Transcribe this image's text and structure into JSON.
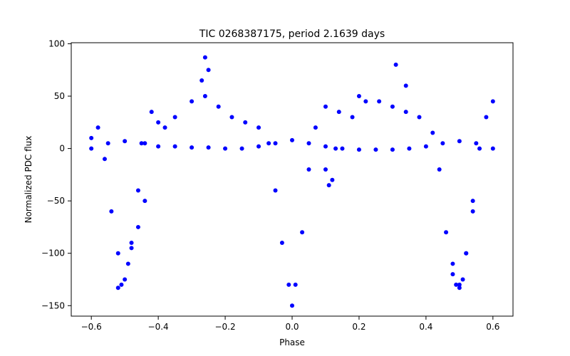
{
  "chart_data": {
    "type": "scatter",
    "title": "TIC 0268387175, period 2.1639 days",
    "xlabel": "Phase",
    "ylabel": "Normalized PDC flux",
    "xlim": [
      -0.66,
      0.66
    ],
    "ylim": [
      -160,
      101
    ],
    "xticks": [
      -0.6,
      -0.4,
      -0.2,
      0.0,
      0.2,
      0.4,
      0.6
    ],
    "xtick_labels": [
      "−0.6",
      "−0.4",
      "−0.2",
      "0.0",
      "0.2",
      "0.4",
      "0.6"
    ],
    "yticks": [
      100,
      50,
      0,
      -50,
      -100,
      -150
    ],
    "ytick_labels": [
      "100",
      "50",
      "0",
      "−50",
      "−100",
      "−150"
    ],
    "grid": false,
    "legend": "none",
    "marker_color": "#0000ff",
    "series": [
      {
        "x": [
          -0.6,
          -0.58,
          -0.56,
          -0.54,
          -0.52,
          -0.5,
          -0.48,
          -0.46,
          -0.44,
          -0.42,
          -0.4,
          -0.38,
          -0.35,
          -0.3,
          -0.26,
          -0.22,
          -0.18,
          -0.14,
          -0.1,
          -0.07,
          -0.05,
          -0.03,
          -0.01,
          0.0,
          0.01,
          0.03,
          0.05,
          0.07,
          0.1,
          0.14,
          0.18,
          0.22,
          0.26,
          0.3,
          0.34,
          0.38,
          0.42,
          0.44,
          0.46,
          0.48,
          0.5,
          0.52,
          0.54,
          0.56,
          0.58,
          0.6
        ],
        "y": [
          10,
          20,
          -10,
          -60,
          -100,
          -125,
          -90,
          -40,
          5,
          35,
          25,
          20,
          30,
          45,
          50,
          40,
          30,
          25,
          20,
          5,
          -40,
          -90,
          -130,
          -150,
          -130,
          -80,
          -20,
          20,
          40,
          35,
          30,
          45,
          45,
          40,
          35,
          30,
          15,
          -20,
          -80,
          -120,
          -130,
          -100,
          -50,
          0,
          30,
          45
        ]
      },
      {
        "x": [
          -0.6,
          -0.55,
          -0.5,
          -0.45,
          -0.4,
          -0.35,
          -0.3,
          -0.25,
          -0.2,
          -0.15,
          -0.1,
          -0.05,
          0.0,
          0.05,
          0.1,
          0.15,
          0.2,
          0.25,
          0.3,
          0.35,
          0.4,
          0.45,
          0.5,
          0.55,
          0.6
        ],
        "y": [
          0,
          5,
          7,
          5,
          2,
          2,
          1,
          1,
          0,
          0,
          2,
          5,
          8,
          5,
          2,
          0,
          -1,
          -1,
          -1,
          0,
          2,
          5,
          7,
          5,
          0
        ]
      },
      {
        "x": [
          -0.27,
          -0.26,
          -0.25
        ],
        "y": [
          65,
          87,
          75
        ]
      },
      {
        "x": [
          -0.52,
          -0.51,
          -0.49,
          -0.48,
          -0.46,
          -0.44
        ],
        "y": [
          -133,
          -130,
          -110,
          -95,
          -75,
          -50
        ]
      },
      {
        "x": [
          0.48,
          0.49,
          0.5,
          0.51,
          0.52,
          0.54
        ],
        "y": [
          -110,
          -130,
          -133,
          -125,
          -100,
          -60
        ]
      },
      {
        "x": [
          0.1,
          0.11,
          0.12,
          0.13,
          0.2,
          0.31,
          0.34
        ],
        "y": [
          -20,
          -35,
          -30,
          0,
          50,
          80,
          60
        ]
      }
    ]
  }
}
